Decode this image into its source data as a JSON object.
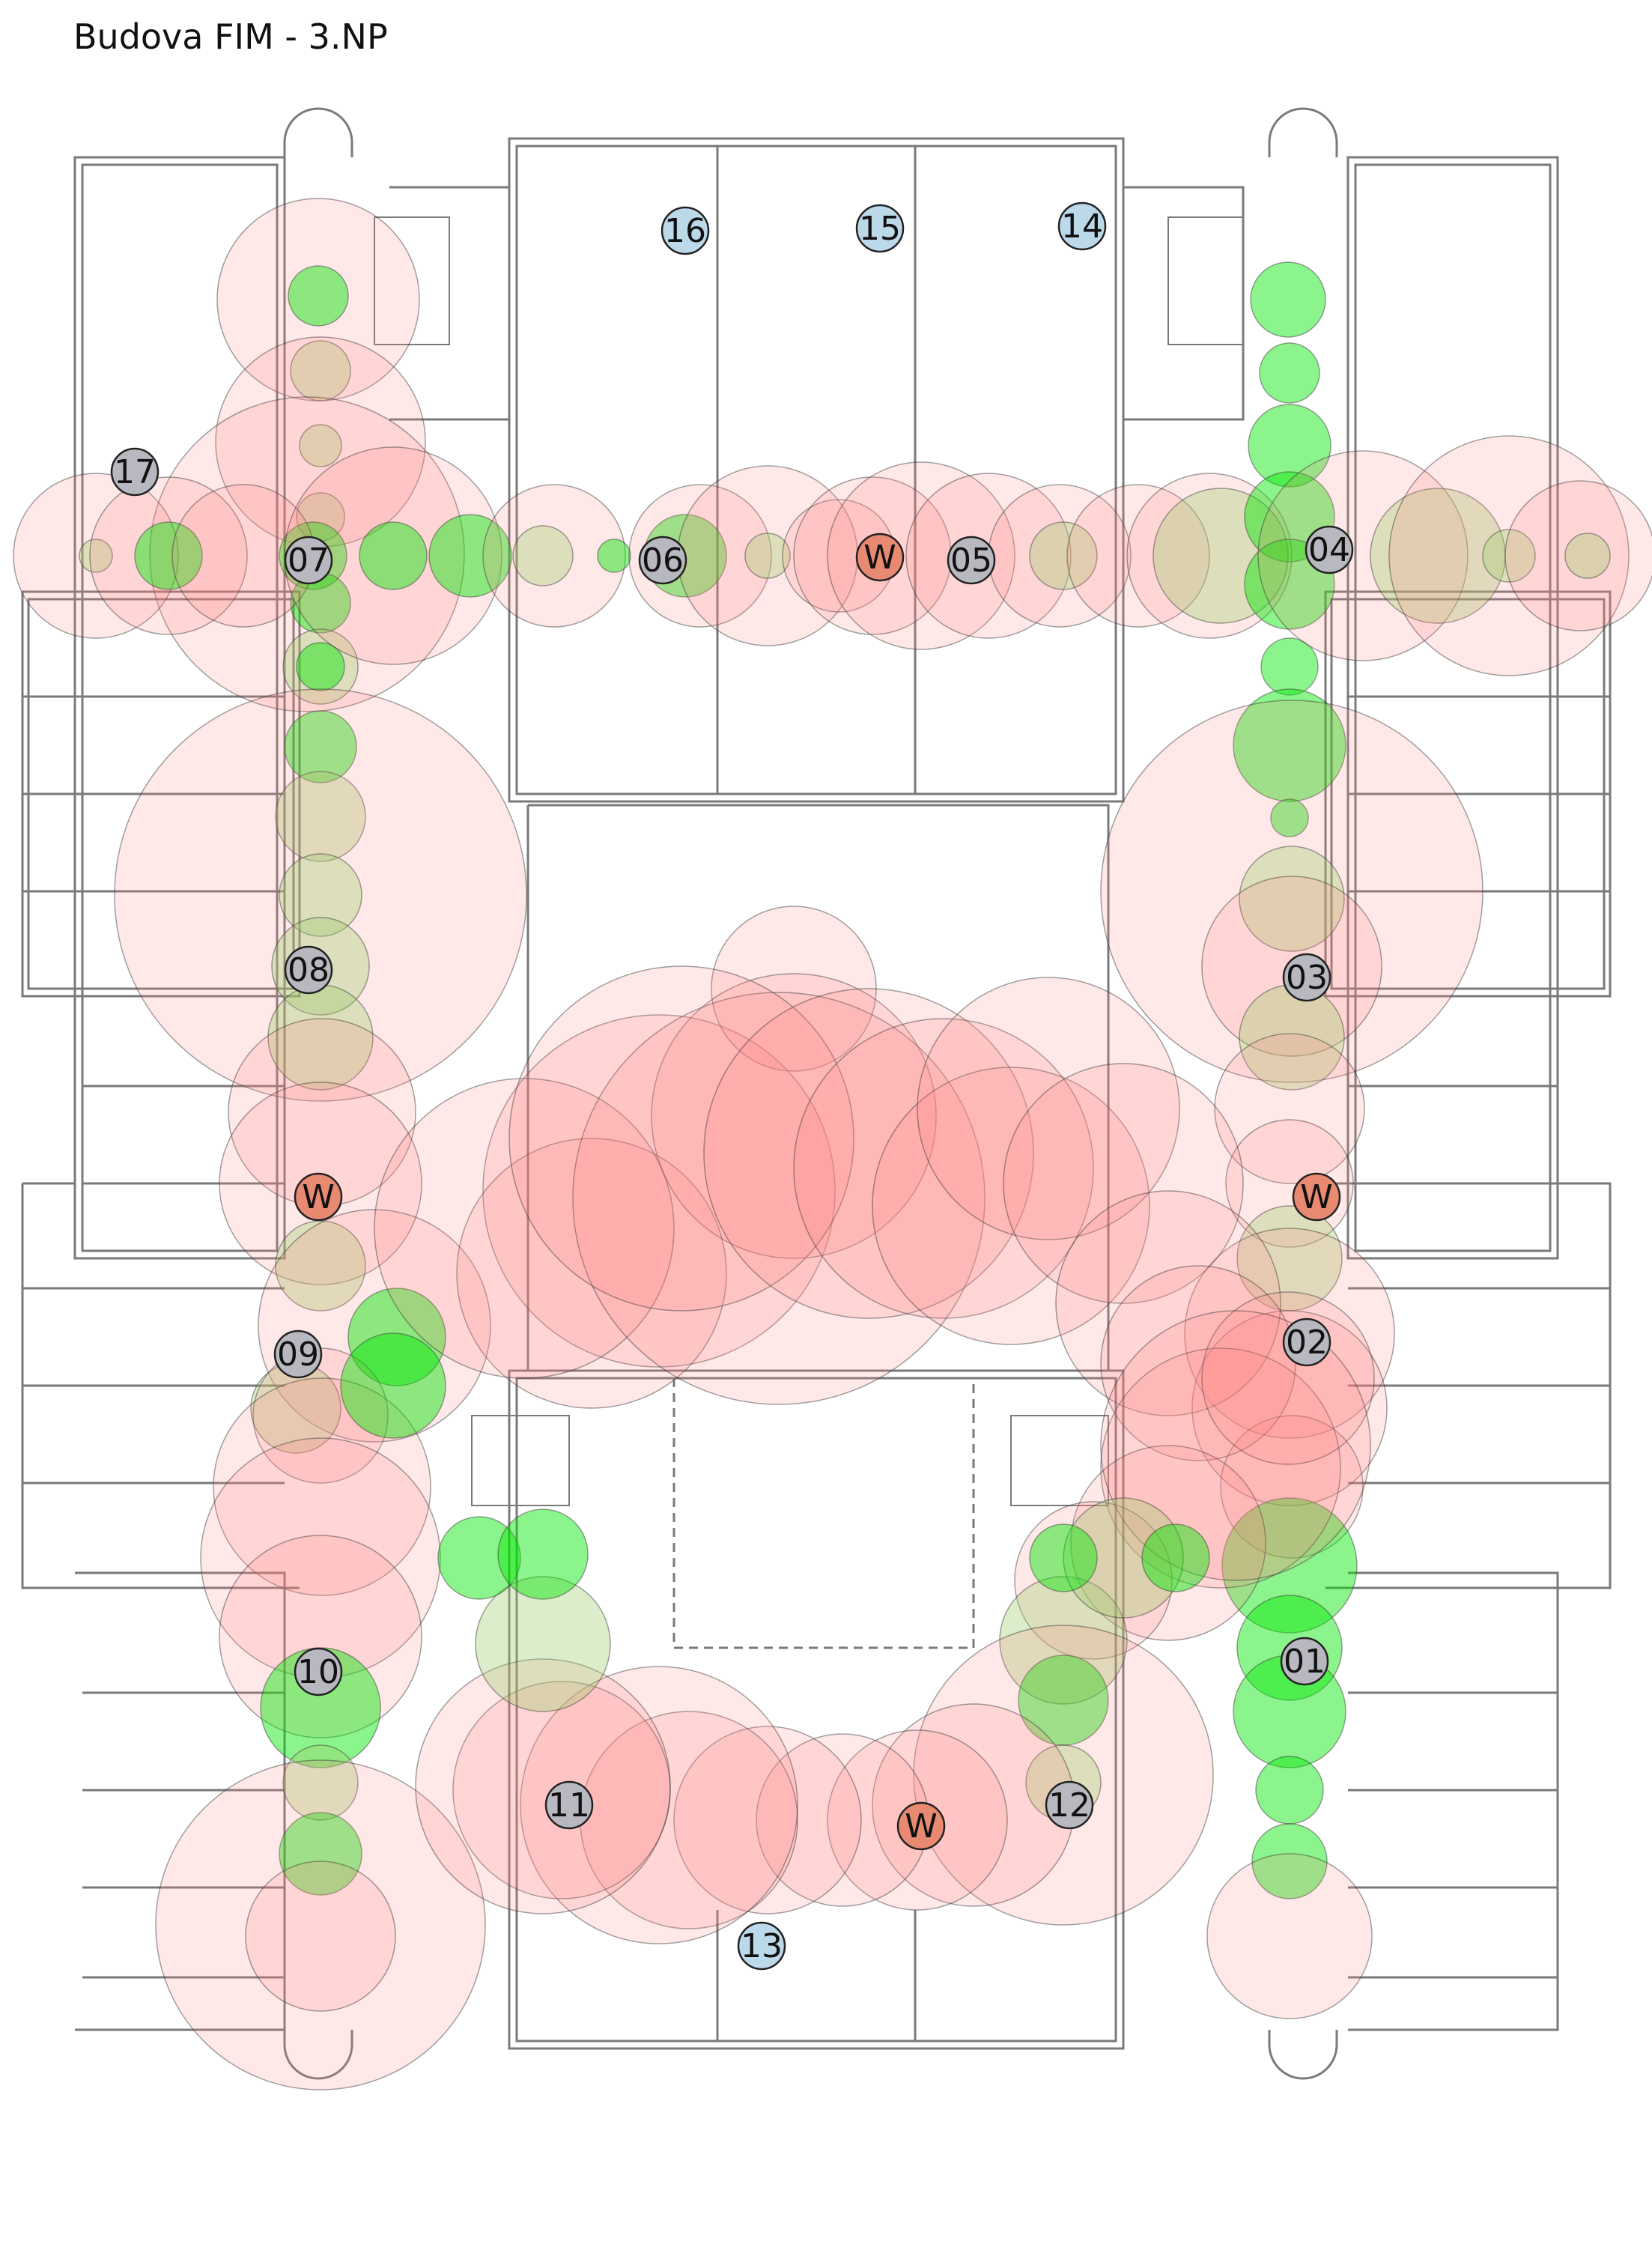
{
  "title": "Budova FIM - 3.NP",
  "colors": {
    "background": "#ffffff",
    "wall": "#7a7a7a",
    "coverage_good": "#00e600",
    "coverage_poor": "#ff8080",
    "marker_ap": "#b8b8c0",
    "marker_reference": "#bcd9ea",
    "marker_window": "#e88a72"
  },
  "markers": [
    {
      "label": "01",
      "kind": "ap"
    },
    {
      "label": "02",
      "kind": "ap"
    },
    {
      "label": "03",
      "kind": "ap"
    },
    {
      "label": "04",
      "kind": "ap"
    },
    {
      "label": "05",
      "kind": "ap"
    },
    {
      "label": "06",
      "kind": "ap"
    },
    {
      "label": "07",
      "kind": "ap"
    },
    {
      "label": "08",
      "kind": "ap"
    },
    {
      "label": "09",
      "kind": "ap"
    },
    {
      "label": "10",
      "kind": "ap"
    },
    {
      "label": "11",
      "kind": "ap"
    },
    {
      "label": "12",
      "kind": "ap"
    },
    {
      "label": "13",
      "kind": "reference"
    },
    {
      "label": "14",
      "kind": "reference"
    },
    {
      "label": "15",
      "kind": "reference"
    },
    {
      "label": "16",
      "kind": "reference"
    },
    {
      "label": "17",
      "kind": "ap"
    },
    {
      "label": "W",
      "kind": "window"
    },
    {
      "label": "W",
      "kind": "window"
    },
    {
      "label": "W",
      "kind": "window"
    },
    {
      "label": "W",
      "kind": "window"
    }
  ]
}
